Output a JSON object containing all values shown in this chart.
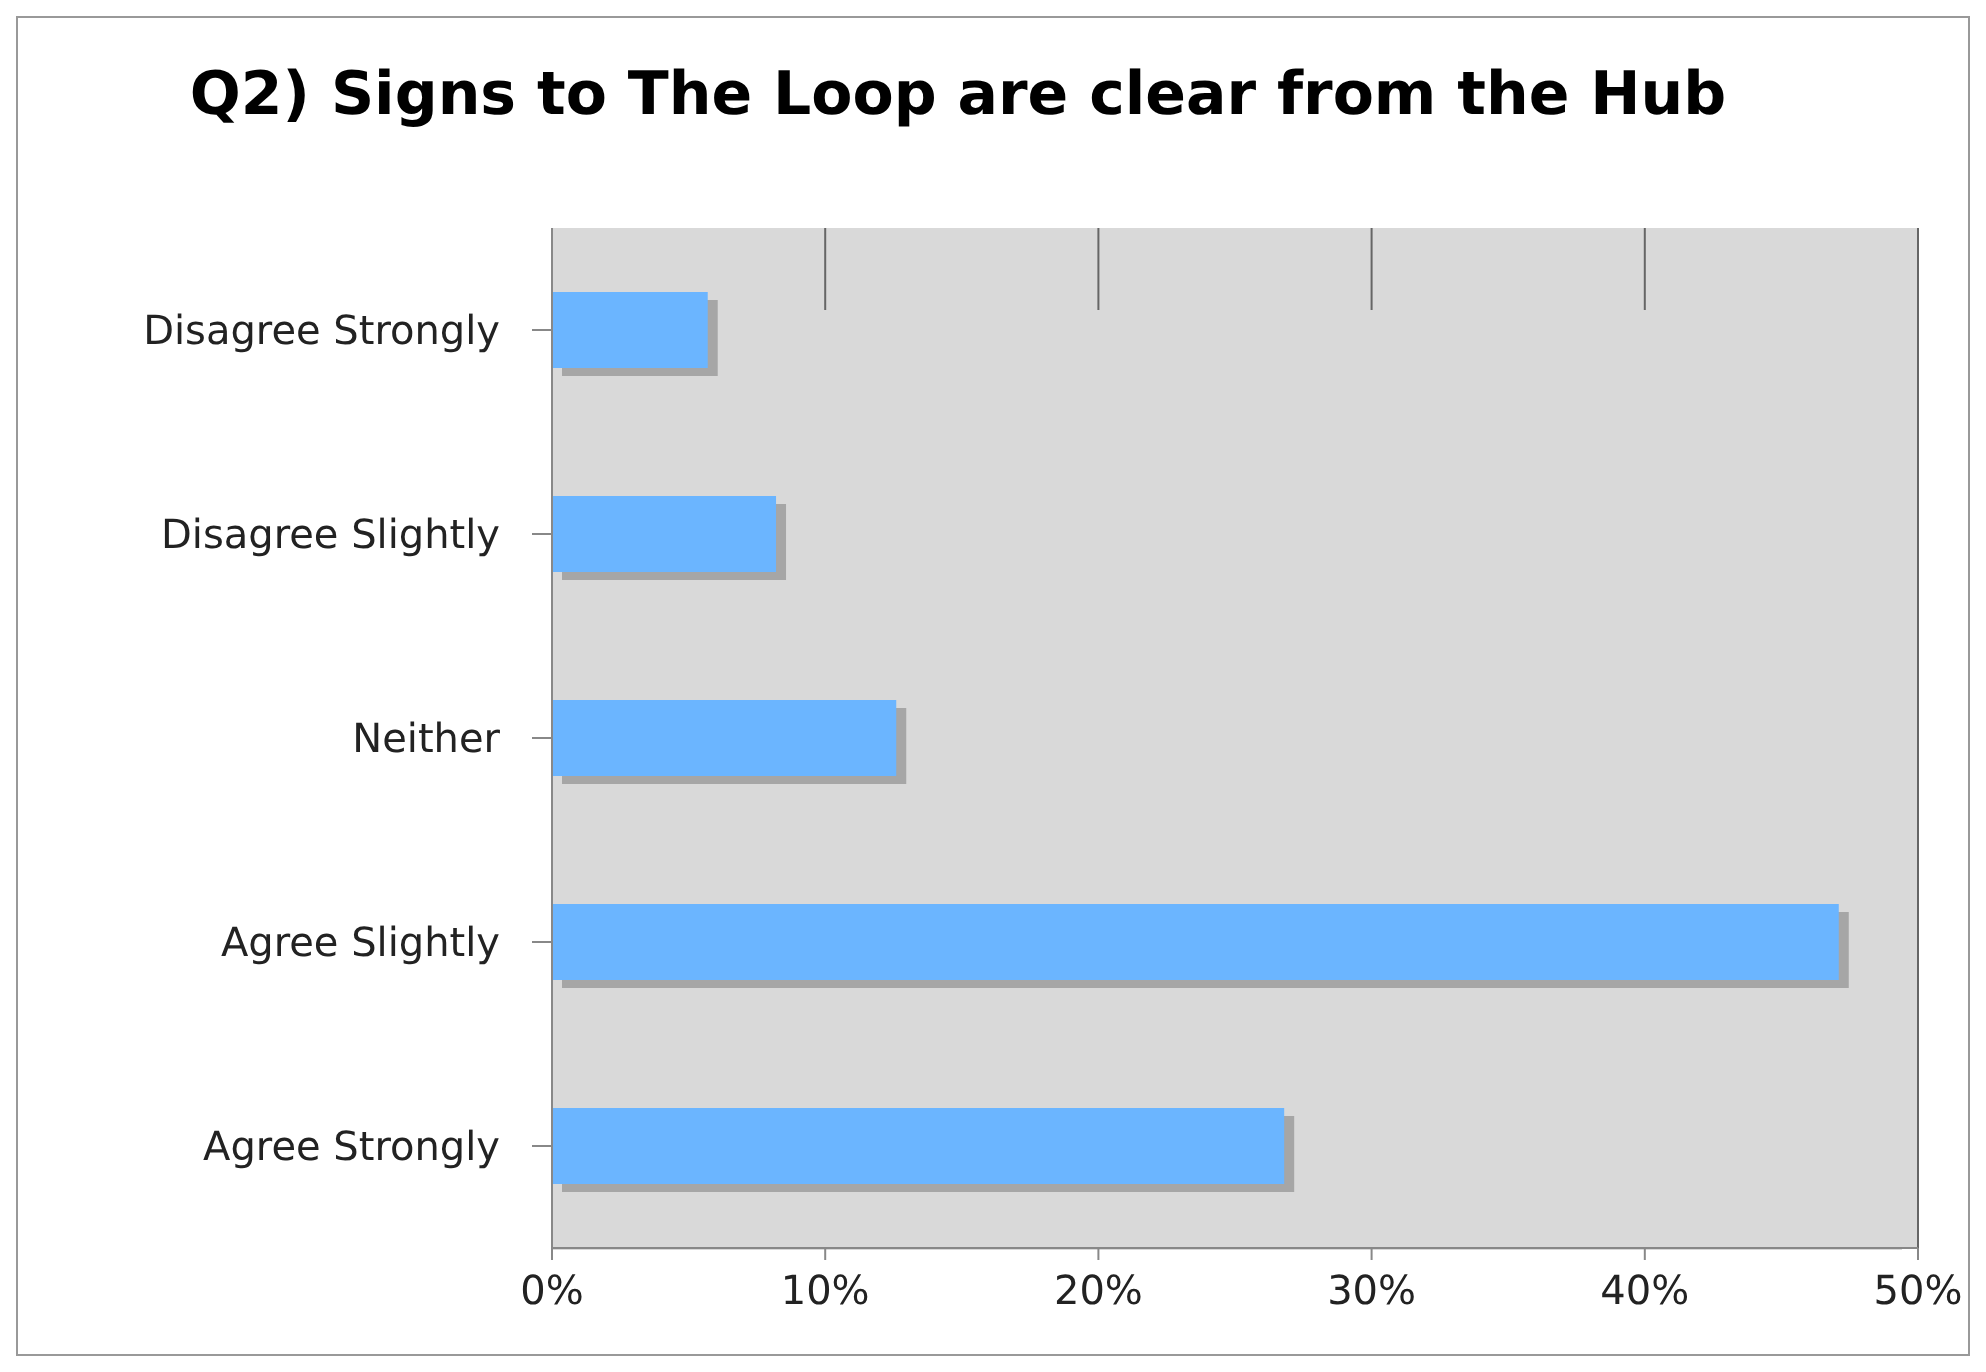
{
  "chart_data": {
    "type": "bar",
    "orientation": "horizontal",
    "title": "Q2) Signs to The Loop are clear from the Hub",
    "categories": [
      "Disagree Strongly",
      "Disagree Slightly",
      "Neither",
      "Agree Slightly",
      "Agree Strongly"
    ],
    "values": [
      5.7,
      8.2,
      12.6,
      47.1,
      26.8
    ],
    "color": "#6bb5ff",
    "xlim": [
      0,
      50
    ],
    "xticks": [
      {
        "value": 0,
        "label": "0%"
      },
      {
        "value": 10,
        "label": "10%"
      },
      {
        "value": 20,
        "label": "20%"
      },
      {
        "value": 30,
        "label": "30%"
      },
      {
        "value": 40,
        "label": "40%"
      },
      {
        "value": 50,
        "label": "50%"
      }
    ],
    "grid": "x"
  }
}
